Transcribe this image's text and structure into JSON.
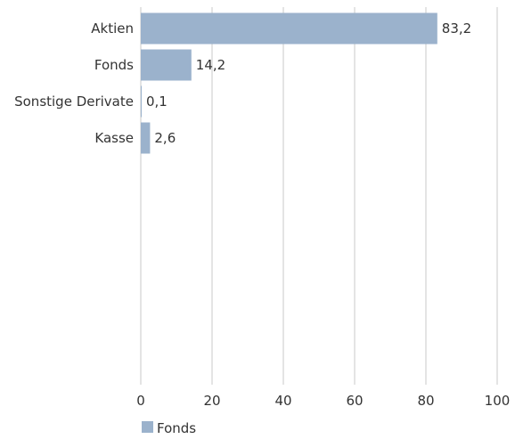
{
  "chart_data": {
    "type": "bar",
    "orientation": "horizontal",
    "title": "",
    "xlabel": "",
    "ylabel": "",
    "categories": [
      "Aktien",
      "Fonds",
      "Sonstige Derivate",
      "Kasse"
    ],
    "value_labels": [
      "83,2",
      "14,2",
      "0,1",
      "2,6"
    ],
    "series": [
      {
        "name": "Fonds",
        "values": [
          83.2,
          14.2,
          0.1,
          2.6
        ]
      }
    ],
    "xlim": [
      0,
      100
    ],
    "xticks": [
      0,
      20,
      40,
      60,
      80,
      100
    ],
    "grid": "vertical",
    "legend": "bottom-left",
    "colors": {
      "bar": "#9bb2cc",
      "grid": "#c8c8c8",
      "text": "#333333"
    }
  }
}
